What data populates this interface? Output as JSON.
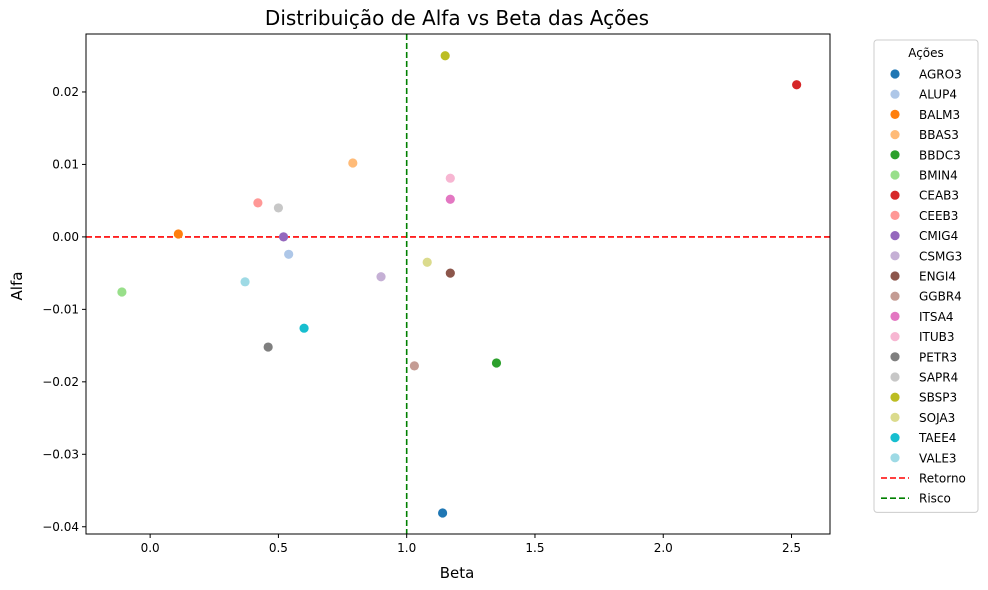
{
  "chart_data": {
    "type": "scatter",
    "title": "Distribuição de Alfa vs Beta das Ações",
    "xlabel": "Beta",
    "ylabel": "Alfa",
    "xlim": [
      -0.25,
      2.65
    ],
    "ylim": [
      -0.041,
      0.028
    ],
    "xticks": [
      0.0,
      0.5,
      1.0,
      1.5,
      2.0,
      2.5
    ],
    "xtick_labels": [
      "0.0",
      "0.5",
      "1.0",
      "1.5",
      "2.0",
      "2.5"
    ],
    "yticks": [
      -0.04,
      -0.03,
      -0.02,
      -0.01,
      0.0,
      0.01,
      0.02
    ],
    "ytick_labels": [
      "−0.04",
      "−0.03",
      "−0.02",
      "−0.01",
      "0.00",
      "0.01",
      "0.02"
    ],
    "grid": false,
    "legend": {
      "title": "Ações",
      "position": "outside-right"
    },
    "points": [
      {
        "name": "AGRO3",
        "x": 1.14,
        "y": -0.0381,
        "color": "#1f77b4"
      },
      {
        "name": "ALUP4",
        "x": 0.54,
        "y": -0.0024,
        "color": "#aec7e8"
      },
      {
        "name": "BALM3",
        "x": 0.11,
        "y": 0.0004,
        "color": "#ff7f0e"
      },
      {
        "name": "BBAS3",
        "x": 0.79,
        "y": 0.0102,
        "color": "#ffbb78"
      },
      {
        "name": "BBDC3",
        "x": 1.35,
        "y": -0.0174,
        "color": "#2ca02c"
      },
      {
        "name": "BMIN4",
        "x": -0.11,
        "y": -0.0076,
        "color": "#98df8a"
      },
      {
        "name": "CEAB3",
        "x": 2.52,
        "y": 0.021,
        "color": "#d62728"
      },
      {
        "name": "CEEB3",
        "x": 0.42,
        "y": 0.0047,
        "color": "#ff9896"
      },
      {
        "name": "CMIG4",
        "x": 0.52,
        "y": 0.0,
        "color": "#9467bd"
      },
      {
        "name": "CSMG3",
        "x": 0.9,
        "y": -0.0055,
        "color": "#c5b0d5"
      },
      {
        "name": "ENGI4",
        "x": 1.17,
        "y": -0.005,
        "color": "#8c564b"
      },
      {
        "name": "GGBR4",
        "x": 1.03,
        "y": -0.0178,
        "color": "#c49c94"
      },
      {
        "name": "ITSA4",
        "x": 1.17,
        "y": 0.0052,
        "color": "#e377c2"
      },
      {
        "name": "ITUB3",
        "x": 1.17,
        "y": 0.0081,
        "color": "#f7b6d2"
      },
      {
        "name": "PETR3",
        "x": 0.46,
        "y": -0.0152,
        "color": "#7f7f7f"
      },
      {
        "name": "SAPR4",
        "x": 0.5,
        "y": 0.004,
        "color": "#c7c7c7"
      },
      {
        "name": "SBSP3",
        "x": 1.15,
        "y": 0.025,
        "color": "#bcbd22"
      },
      {
        "name": "SOJA3",
        "x": 1.08,
        "y": -0.0035,
        "color": "#dbdb8d"
      },
      {
        "name": "TAEE4",
        "x": 0.6,
        "y": -0.0126,
        "color": "#17becf"
      },
      {
        "name": "VALE3",
        "x": 0.37,
        "y": -0.0062,
        "color": "#9edae5"
      }
    ],
    "reference_lines": [
      {
        "name": "Retorno",
        "orientation": "horizontal",
        "value": 0.0,
        "color": "#ff0000",
        "style": "dashed"
      },
      {
        "name": "Risco",
        "orientation": "vertical",
        "value": 1.0,
        "color": "#008000",
        "style": "dashed"
      }
    ]
  }
}
